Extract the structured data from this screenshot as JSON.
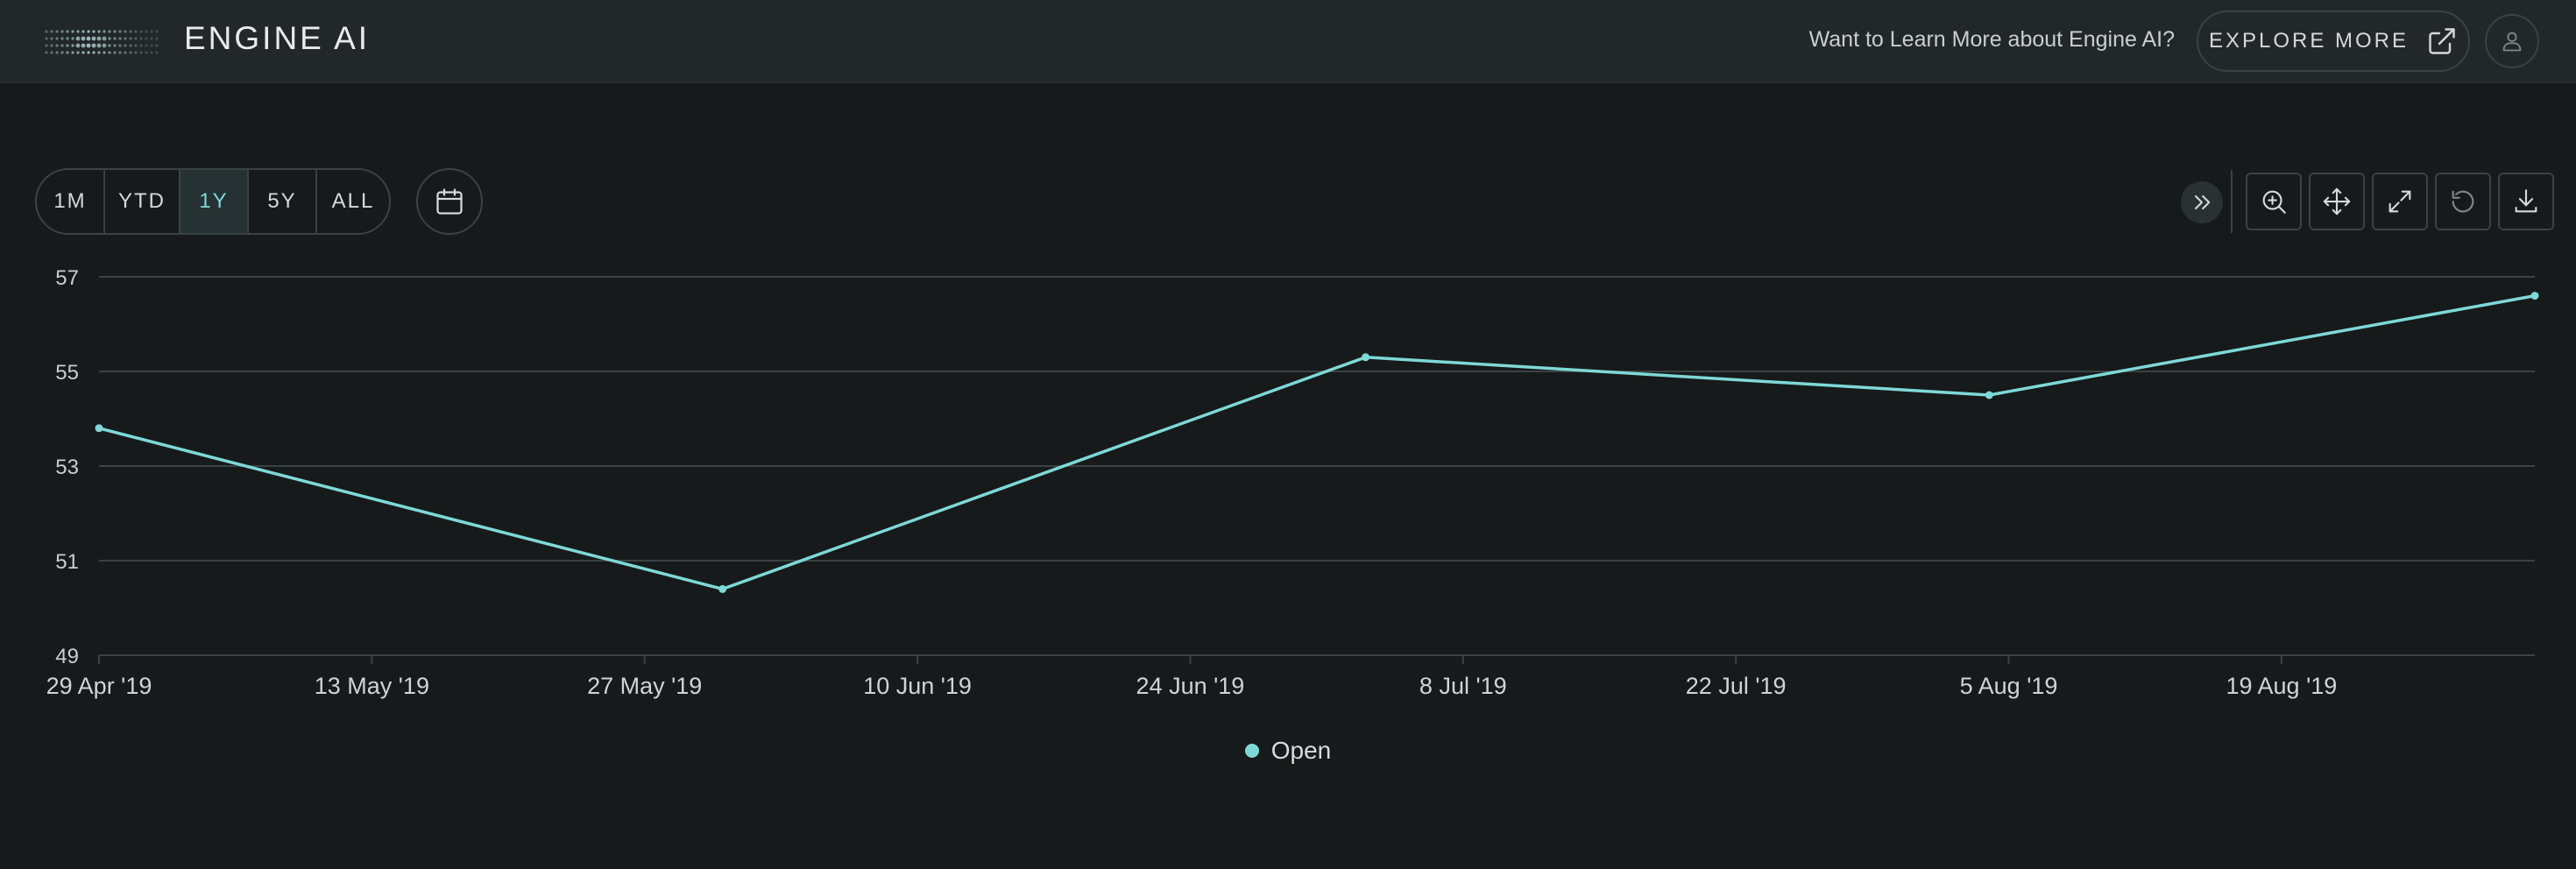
{
  "header": {
    "brand": "ENGINE AI",
    "learn_more": "Want to Learn More about Engine AI?",
    "explore_label": "EXPLORE MORE"
  },
  "toolbar": {
    "ranges": [
      "1M",
      "YTD",
      "1Y",
      "5Y",
      "ALL"
    ],
    "active_range": "1Y",
    "icons": [
      "zoom-in-icon",
      "pan-icon",
      "expand-icon",
      "reset-icon",
      "download-icon"
    ]
  },
  "colors": {
    "accent": "#7fd8d8",
    "background": "#161a1b",
    "topbar": "#222829",
    "grid": "#3a4243"
  },
  "chart_data": {
    "type": "line",
    "title": "",
    "xlabel": "",
    "ylabel": "",
    "ylim": [
      49,
      57
    ],
    "yticks": [
      49,
      51,
      53,
      55,
      57
    ],
    "xlim": [
      "2019-04-29",
      "2019-09-01"
    ],
    "xticks": [
      {
        "date": "2019-04-29",
        "label": "29 Apr '19"
      },
      {
        "date": "2019-05-13",
        "label": "13 May '19"
      },
      {
        "date": "2019-05-27",
        "label": "27 May '19"
      },
      {
        "date": "2019-06-10",
        "label": "10 Jun '19"
      },
      {
        "date": "2019-06-24",
        "label": "24 Jun '19"
      },
      {
        "date": "2019-07-08",
        "label": "8 Jul '19"
      },
      {
        "date": "2019-07-22",
        "label": "22 Jul '19"
      },
      {
        "date": "2019-08-05",
        "label": "5 Aug '19"
      },
      {
        "date": "2019-08-19",
        "label": "19 Aug '19"
      }
    ],
    "grid": true,
    "legend_position": "bottom",
    "series": [
      {
        "name": "Open",
        "color": "#7fd8d8",
        "points": [
          {
            "x": "2019-04-29",
            "y": 53.8
          },
          {
            "x": "2019-05-31",
            "y": 50.4
          },
          {
            "x": "2019-07-03",
            "y": 55.3
          },
          {
            "x": "2019-08-04",
            "y": 54.5
          },
          {
            "x": "2019-09-01",
            "y": 56.6
          }
        ]
      }
    ]
  }
}
